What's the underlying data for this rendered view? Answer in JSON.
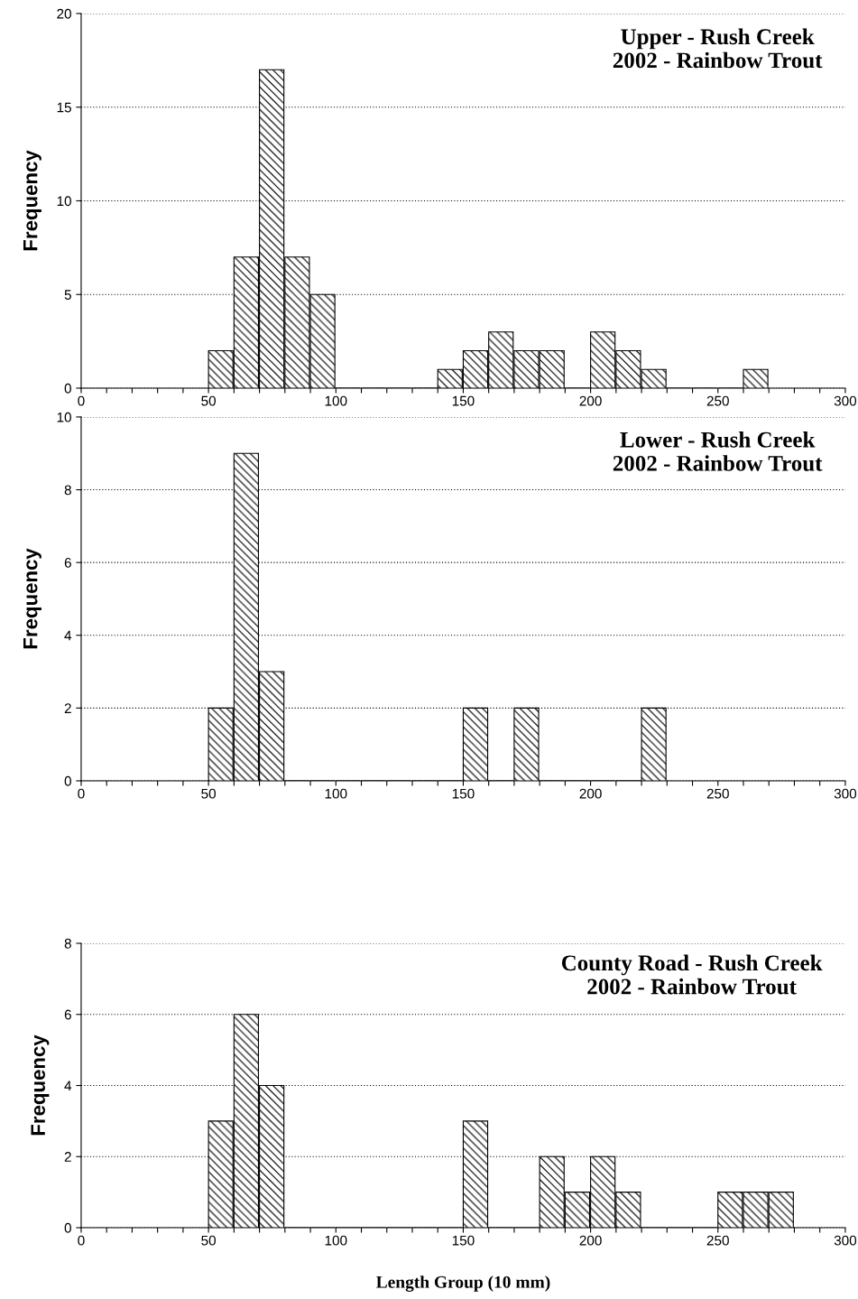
{
  "chart_data": [
    {
      "type": "histogram",
      "title": "Upper - Rush Creek\n2002 - Rainbow Trout",
      "ylabel": "Frequency",
      "color": "#000000",
      "bins": [
        50,
        60,
        70,
        80,
        90,
        100,
        110,
        120,
        130,
        140,
        150,
        160,
        170,
        180,
        190,
        200,
        210,
        220,
        230,
        240,
        250,
        260,
        270
      ],
      "values": [
        2,
        7,
        17,
        7,
        5,
        0,
        0,
        0,
        0,
        1,
        2,
        3,
        2,
        2,
        0,
        3,
        2,
        1,
        0,
        0,
        0,
        1
      ],
      "xlim": [
        0,
        300
      ],
      "xticks": [
        0,
        {
          "value": 10,
          "label": null
        },
        {
          "value": 20,
          "label": null
        },
        {
          "value": 30,
          "label": null
        },
        {
          "value": 40,
          "label": null
        },
        50,
        {
          "value": 60,
          "label": null
        },
        {
          "value": 70,
          "label": null
        },
        {
          "value": 80,
          "label": null
        },
        {
          "value": 90,
          "label": null
        },
        100,
        {
          "value": 110,
          "label": null
        },
        {
          "value": 120,
          "label": null
        },
        {
          "value": 130,
          "label": null
        },
        {
          "value": 140,
          "label": null
        },
        150,
        {
          "value": 160,
          "label": null
        },
        {
          "value": 170,
          "label": null
        },
        {
          "value": 180,
          "label": null
        },
        {
          "value": 190,
          "label": null
        },
        200,
        {
          "value": 210,
          "label": null
        },
        {
          "value": 220,
          "label": null
        },
        {
          "value": 230,
          "label": null
        },
        {
          "value": 240,
          "label": null
        },
        250,
        {
          "value": 260,
          "label": null
        },
        {
          "value": 270,
          "label": null
        },
        {
          "value": 280,
          "label": null
        },
        {
          "value": 290,
          "label": null
        },
        300
      ],
      "ylim": [
        0,
        20
      ],
      "yticks": [
        0,
        5,
        10,
        15,
        20
      ],
      "grid": "y"
    },
    {
      "type": "histogram",
      "title": "Lower - Rush Creek\n2002 - Rainbow Trout",
      "ylabel": "Frequency",
      "color": "#000000",
      "bins": [
        50,
        60,
        70,
        80,
        90,
        100,
        110,
        120,
        130,
        140,
        150,
        160,
        170,
        180,
        190,
        200,
        210,
        220,
        230
      ],
      "values": [
        2,
        9,
        3,
        0,
        0,
        0,
        0,
        0,
        0,
        0,
        2,
        0,
        2,
        0,
        0,
        0,
        0,
        2
      ],
      "xlim": [
        0,
        300
      ],
      "xticks": [
        0,
        {
          "value": 10,
          "label": null
        },
        {
          "value": 20,
          "label": null
        },
        {
          "value": 30,
          "label": null
        },
        {
          "value": 40,
          "label": null
        },
        50,
        {
          "value": 60,
          "label": null
        },
        {
          "value": 70,
          "label": null
        },
        {
          "value": 80,
          "label": null
        },
        {
          "value": 90,
          "label": null
        },
        100,
        {
          "value": 110,
          "label": null
        },
        {
          "value": 120,
          "label": null
        },
        {
          "value": 130,
          "label": null
        },
        {
          "value": 140,
          "label": null
        },
        150,
        {
          "value": 160,
          "label": null
        },
        {
          "value": 170,
          "label": null
        },
        {
          "value": 180,
          "label": null
        },
        {
          "value": 190,
          "label": null
        },
        200,
        {
          "value": 210,
          "label": null
        },
        {
          "value": 220,
          "label": null
        },
        {
          "value": 230,
          "label": null
        },
        {
          "value": 240,
          "label": null
        },
        250,
        {
          "value": 260,
          "label": null
        },
        {
          "value": 270,
          "label": null
        },
        {
          "value": 280,
          "label": null
        },
        {
          "value": 290,
          "label": null
        },
        300
      ],
      "ylim": [
        0,
        10
      ],
      "yticks": [
        0,
        2,
        4,
        6,
        8,
        10
      ],
      "grid": "y"
    },
    {
      "type": "histogram",
      "title": "County Road - Rush Creek\n2002 - Rainbow Trout",
      "ylabel": "Frequency",
      "xlabel": "Length Group (10 mm)",
      "color": "#000000",
      "bins": [
        50,
        60,
        70,
        80,
        90,
        100,
        110,
        120,
        130,
        140,
        150,
        160,
        170,
        180,
        190,
        200,
        210,
        220,
        230,
        240,
        250,
        260,
        270,
        280
      ],
      "values": [
        3,
        6,
        4,
        0,
        0,
        0,
        0,
        0,
        0,
        0,
        3,
        0,
        0,
        2,
        1,
        2,
        1,
        0,
        0,
        0,
        1,
        1,
        1
      ],
      "xlim": [
        0,
        300
      ],
      "xticks": [
        0,
        {
          "value": 10,
          "label": null
        },
        {
          "value": 20,
          "label": null
        },
        {
          "value": 30,
          "label": null
        },
        {
          "value": 40,
          "label": null
        },
        50,
        {
          "value": 60,
          "label": null
        },
        {
          "value": 70,
          "label": null
        },
        {
          "value": 80,
          "label": null
        },
        {
          "value": 90,
          "label": null
        },
        100,
        {
          "value": 110,
          "label": null
        },
        {
          "value": 120,
          "label": null
        },
        {
          "value": 130,
          "label": null
        },
        {
          "value": 140,
          "label": null
        },
        150,
        {
          "value": 160,
          "label": null
        },
        {
          "value": 170,
          "label": null
        },
        {
          "value": 180,
          "label": null
        },
        {
          "value": 190,
          "label": null
        },
        200,
        {
          "value": 210,
          "label": null
        },
        {
          "value": 220,
          "label": null
        },
        {
          "value": 230,
          "label": null
        },
        {
          "value": 240,
          "label": null
        },
        250,
        {
          "value": 260,
          "label": null
        },
        {
          "value": 270,
          "label": null
        },
        {
          "value": 280,
          "label": null
        },
        {
          "value": 290,
          "label": null
        },
        300
      ],
      "ylim": [
        0,
        8
      ],
      "yticks": [
        0,
        2,
        4,
        6,
        8
      ],
      "grid": "y"
    }
  ]
}
